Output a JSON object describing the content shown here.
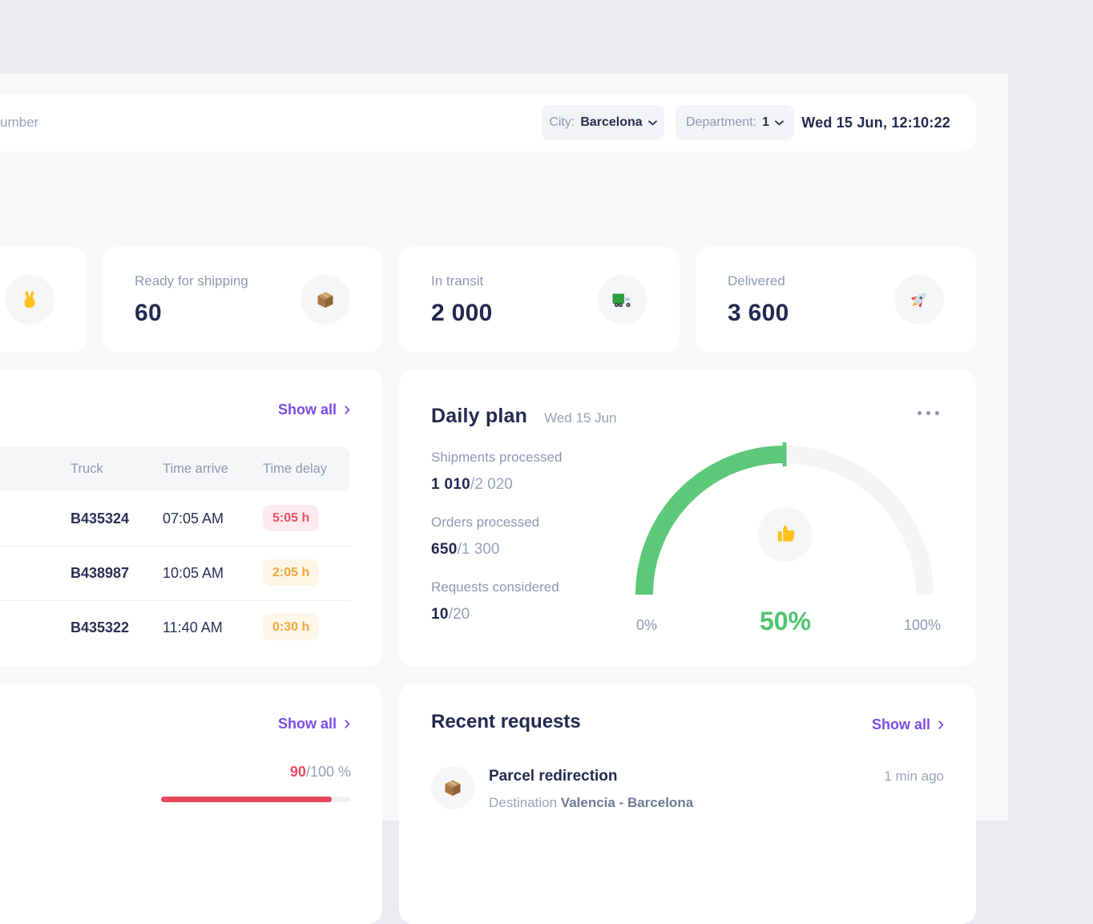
{
  "header": {
    "search_visible_text": "umber",
    "filters": [
      {
        "label": "City:",
        "value": "Barcelona"
      },
      {
        "label": "Department:",
        "value": "1"
      }
    ],
    "datetime": "Wed 15 Jun, 12:10:22"
  },
  "stats": [
    {
      "label": "Ready for shipping",
      "value": "60",
      "icon": "package-icon"
    },
    {
      "label": "In transit",
      "value": "2 000",
      "icon": "truck-icon"
    },
    {
      "label": "Delivered",
      "value": "3 600",
      "icon": "rocket-icon"
    }
  ],
  "partial_stat_card": {
    "icon": "victory-hand-icon"
  },
  "arrivals": {
    "show_all_label": "Show all",
    "columns": [
      "Truck",
      "Time arrive",
      "Time delay"
    ],
    "rows": [
      {
        "truck": "B435324",
        "time_arrive": "07:05 AM",
        "time_delay": "5:05 h",
        "severity": "high"
      },
      {
        "truck": "B438987",
        "time_arrive": "10:05 AM",
        "time_delay": "2:05 h",
        "severity": "medium"
      },
      {
        "truck": "B435322",
        "time_arrive": "11:40 AM",
        "time_delay": "0:30 h",
        "severity": "low"
      }
    ]
  },
  "daily_plan": {
    "title": "Daily plan",
    "date": "Wed 15 Jun",
    "metrics": [
      {
        "label": "Shipments processed",
        "value": "1 010",
        "total": "/2 020"
      },
      {
        "label": "Orders processed",
        "value": "650",
        "total": "/1 300"
      },
      {
        "label": "Requests considered",
        "value": "10",
        "total": "/20"
      }
    ],
    "gauge": {
      "type": "gauge",
      "percent": 50,
      "min_label": "0%",
      "center_label": "50%",
      "max_label": "100%",
      "color": "#5ec879",
      "icon": "thumbs-up-icon"
    }
  },
  "progress_card": {
    "show_all_label": "Show all",
    "value": "90",
    "total": "/100 %",
    "percent": 90
  },
  "recent_requests": {
    "title": "Recent requests",
    "show_all_label": "Show all",
    "items": [
      {
        "title": "Parcel redirection",
        "destination_label": "Destination",
        "destination": "Valencia - Barcelona",
        "time": "1 min ago",
        "icon": "package-icon"
      }
    ]
  },
  "colors": {
    "accent_purple": "#7b4ce6",
    "navy": "#232a50",
    "green": "#5ec879",
    "red": "#e8495f",
    "orange": "#f0a73f"
  }
}
